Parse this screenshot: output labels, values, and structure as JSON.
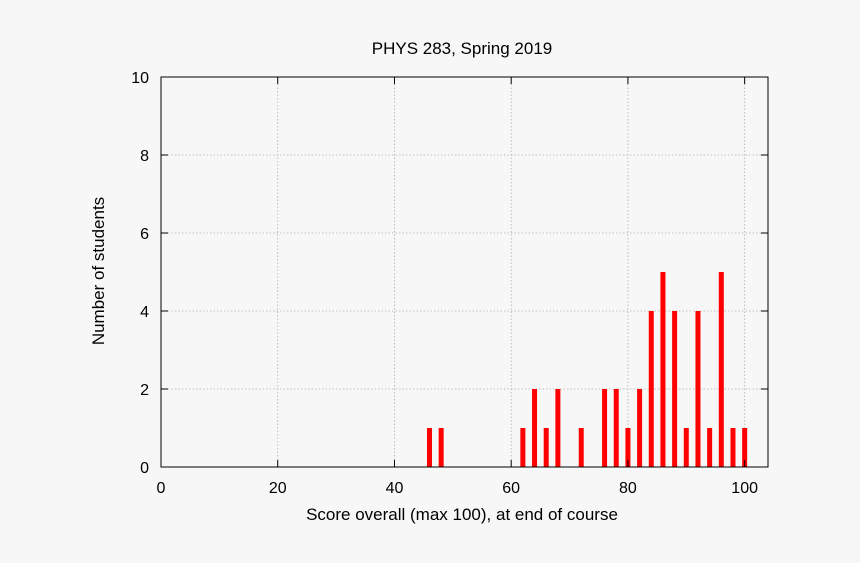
{
  "chart_data": {
    "type": "bar",
    "title": "PHYS 283, Spring 2019",
    "xlabel": "Score overall (max 100), at end of course",
    "ylabel": "Number of students",
    "xlim": [
      0,
      104
    ],
    "ylim": [
      0,
      10
    ],
    "xticks": [
      0,
      20,
      40,
      60,
      80,
      100
    ],
    "yticks": [
      0,
      2,
      4,
      6,
      8,
      10
    ],
    "grid": true,
    "bar_color": "#ff0000",
    "bars": [
      {
        "x": 46,
        "y": 1
      },
      {
        "x": 48,
        "y": 1
      },
      {
        "x": 62,
        "y": 1
      },
      {
        "x": 64,
        "y": 2
      },
      {
        "x": 66,
        "y": 1
      },
      {
        "x": 68,
        "y": 2
      },
      {
        "x": 72,
        "y": 1
      },
      {
        "x": 76,
        "y": 2
      },
      {
        "x": 78,
        "y": 2
      },
      {
        "x": 80,
        "y": 1
      },
      {
        "x": 82,
        "y": 2
      },
      {
        "x": 84,
        "y": 4
      },
      {
        "x": 86,
        "y": 5
      },
      {
        "x": 88,
        "y": 4
      },
      {
        "x": 90,
        "y": 1
      },
      {
        "x": 92,
        "y": 4
      },
      {
        "x": 94,
        "y": 1
      },
      {
        "x": 96,
        "y": 5
      },
      {
        "x": 98,
        "y": 1
      },
      {
        "x": 100,
        "y": 1
      }
    ]
  }
}
